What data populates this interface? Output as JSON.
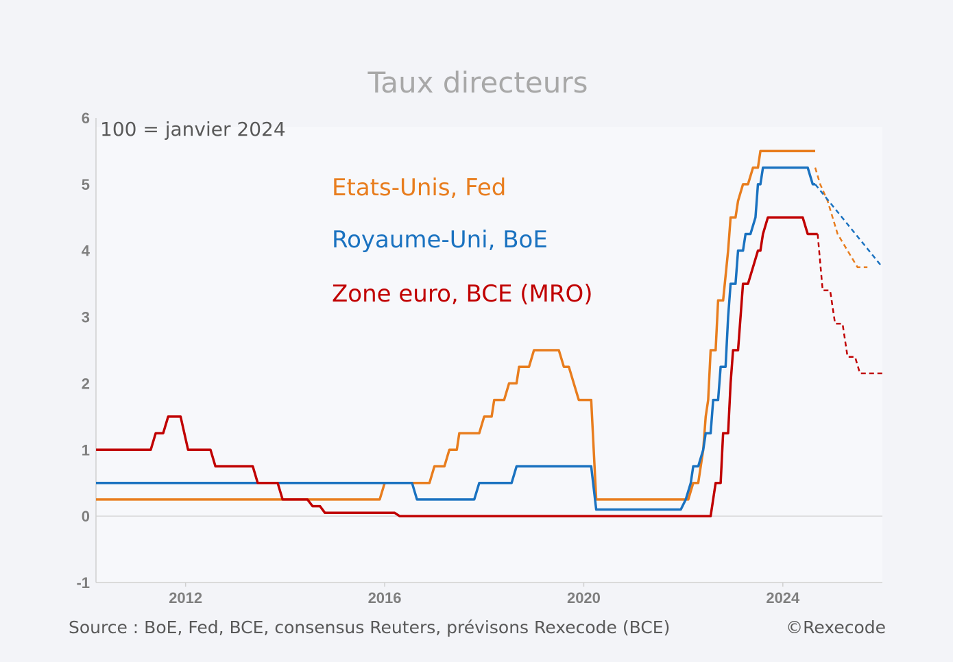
{
  "chart_data": {
    "type": "line",
    "title": "Taux directeurs",
    "note": "100 = janvier 2024",
    "source": "Source : BoE, Fed, BCE, consensus Reuters, prévisons Rexecode (BCE)",
    "copyright": "©Rexecode",
    "xlim": [
      2010.2,
      2026.0
    ],
    "ylim": [
      -1,
      6
    ],
    "yticks": [
      -1,
      0,
      1,
      2,
      3,
      4,
      5,
      6
    ],
    "xticks": [
      2012,
      2016,
      2020,
      2024
    ],
    "legend_position": "top-center",
    "series": [
      {
        "name": "Etats-Unis, Fed",
        "color": "#e87d1e",
        "actual": [
          [
            2010.2,
            0.25
          ],
          [
            2015.9,
            0.25
          ],
          [
            2016.0,
            0.5
          ],
          [
            2016.9,
            0.5
          ],
          [
            2017.0,
            0.75
          ],
          [
            2017.2,
            0.75
          ],
          [
            2017.3,
            1.0
          ],
          [
            2017.45,
            1.0
          ],
          [
            2017.5,
            1.25
          ],
          [
            2017.9,
            1.25
          ],
          [
            2018.0,
            1.5
          ],
          [
            2018.15,
            1.5
          ],
          [
            2018.2,
            1.75
          ],
          [
            2018.4,
            1.75
          ],
          [
            2018.5,
            2.0
          ],
          [
            2018.65,
            2.0
          ],
          [
            2018.7,
            2.25
          ],
          [
            2018.9,
            2.25
          ],
          [
            2019.0,
            2.5
          ],
          [
            2019.5,
            2.5
          ],
          [
            2019.6,
            2.25
          ],
          [
            2019.7,
            2.25
          ],
          [
            2019.8,
            2.0
          ],
          [
            2019.9,
            1.75
          ],
          [
            2020.15,
            1.75
          ],
          [
            2020.25,
            0.25
          ],
          [
            2022.1,
            0.25
          ],
          [
            2022.2,
            0.5
          ],
          [
            2022.3,
            0.5
          ],
          [
            2022.4,
            1.0
          ],
          [
            2022.45,
            1.5
          ],
          [
            2022.5,
            1.75
          ],
          [
            2022.55,
            2.5
          ],
          [
            2022.65,
            2.5
          ],
          [
            2022.7,
            3.25
          ],
          [
            2022.8,
            3.25
          ],
          [
            2022.9,
            4.0
          ],
          [
            2022.95,
            4.5
          ],
          [
            2023.05,
            4.5
          ],
          [
            2023.1,
            4.75
          ],
          [
            2023.2,
            5.0
          ],
          [
            2023.3,
            5.0
          ],
          [
            2023.4,
            5.25
          ],
          [
            2023.5,
            5.25
          ],
          [
            2023.55,
            5.5
          ],
          [
            2024.65,
            5.5
          ]
        ],
        "forecast": [
          [
            2024.65,
            5.25
          ],
          [
            2024.75,
            5.0
          ],
          [
            2024.9,
            4.75
          ],
          [
            2025.0,
            4.5
          ],
          [
            2025.1,
            4.25
          ],
          [
            2025.3,
            4.0
          ],
          [
            2025.5,
            3.75
          ],
          [
            2025.7,
            3.75
          ]
        ]
      },
      {
        "name": "Royaume-Uni, BoE",
        "color": "#1a72c0",
        "actual": [
          [
            2010.2,
            0.5
          ],
          [
            2016.55,
            0.5
          ],
          [
            2016.65,
            0.25
          ],
          [
            2017.8,
            0.25
          ],
          [
            2017.9,
            0.5
          ],
          [
            2018.55,
            0.5
          ],
          [
            2018.65,
            0.75
          ],
          [
            2020.15,
            0.75
          ],
          [
            2020.25,
            0.1
          ],
          [
            2021.95,
            0.1
          ],
          [
            2022.05,
            0.25
          ],
          [
            2022.15,
            0.5
          ],
          [
            2022.2,
            0.75
          ],
          [
            2022.3,
            0.75
          ],
          [
            2022.4,
            1.0
          ],
          [
            2022.45,
            1.25
          ],
          [
            2022.55,
            1.25
          ],
          [
            2022.6,
            1.75
          ],
          [
            2022.7,
            1.75
          ],
          [
            2022.75,
            2.25
          ],
          [
            2022.85,
            2.25
          ],
          [
            2022.9,
            3.0
          ],
          [
            2022.95,
            3.5
          ],
          [
            2023.05,
            3.5
          ],
          [
            2023.1,
            4.0
          ],
          [
            2023.2,
            4.0
          ],
          [
            2023.25,
            4.25
          ],
          [
            2023.35,
            4.25
          ],
          [
            2023.45,
            4.5
          ],
          [
            2023.5,
            5.0
          ],
          [
            2023.55,
            5.0
          ],
          [
            2023.6,
            5.25
          ],
          [
            2024.5,
            5.25
          ],
          [
            2024.6,
            5.0
          ],
          [
            2024.65,
            5.0
          ]
        ],
        "forecast": [
          [
            2024.65,
            5.0
          ],
          [
            2026.0,
            3.75
          ]
        ]
      },
      {
        "name": "Zone euro, BCE (MRO)",
        "color": "#c00000",
        "actual": [
          [
            2010.2,
            1.0
          ],
          [
            2011.3,
            1.0
          ],
          [
            2011.4,
            1.25
          ],
          [
            2011.55,
            1.25
          ],
          [
            2011.65,
            1.5
          ],
          [
            2011.9,
            1.5
          ],
          [
            2012.05,
            1.0
          ],
          [
            2012.5,
            1.0
          ],
          [
            2012.6,
            0.75
          ],
          [
            2013.35,
            0.75
          ],
          [
            2013.45,
            0.5
          ],
          [
            2013.85,
            0.5
          ],
          [
            2013.95,
            0.25
          ],
          [
            2014.45,
            0.25
          ],
          [
            2014.55,
            0.15
          ],
          [
            2014.7,
            0.15
          ],
          [
            2014.8,
            0.05
          ],
          [
            2016.2,
            0.05
          ],
          [
            2016.3,
            0.0
          ],
          [
            2022.55,
            0.0
          ],
          [
            2022.65,
            0.5
          ],
          [
            2022.75,
            0.5
          ],
          [
            2022.8,
            1.25
          ],
          [
            2022.9,
            1.25
          ],
          [
            2022.95,
            2.0
          ],
          [
            2023.0,
            2.5
          ],
          [
            2023.1,
            2.5
          ],
          [
            2023.15,
            3.0
          ],
          [
            2023.2,
            3.5
          ],
          [
            2023.3,
            3.5
          ],
          [
            2023.4,
            3.75
          ],
          [
            2023.5,
            4.0
          ],
          [
            2023.55,
            4.0
          ],
          [
            2023.6,
            4.25
          ],
          [
            2023.7,
            4.5
          ],
          [
            2024.4,
            4.5
          ],
          [
            2024.5,
            4.25
          ],
          [
            2024.7,
            4.25
          ]
        ],
        "forecast": [
          [
            2024.7,
            4.25
          ],
          [
            2024.8,
            3.4
          ],
          [
            2024.95,
            3.4
          ],
          [
            2025.05,
            2.9
          ],
          [
            2025.2,
            2.9
          ],
          [
            2025.3,
            2.4
          ],
          [
            2025.45,
            2.4
          ],
          [
            2025.55,
            2.15
          ],
          [
            2026.0,
            2.15
          ]
        ]
      }
    ]
  }
}
